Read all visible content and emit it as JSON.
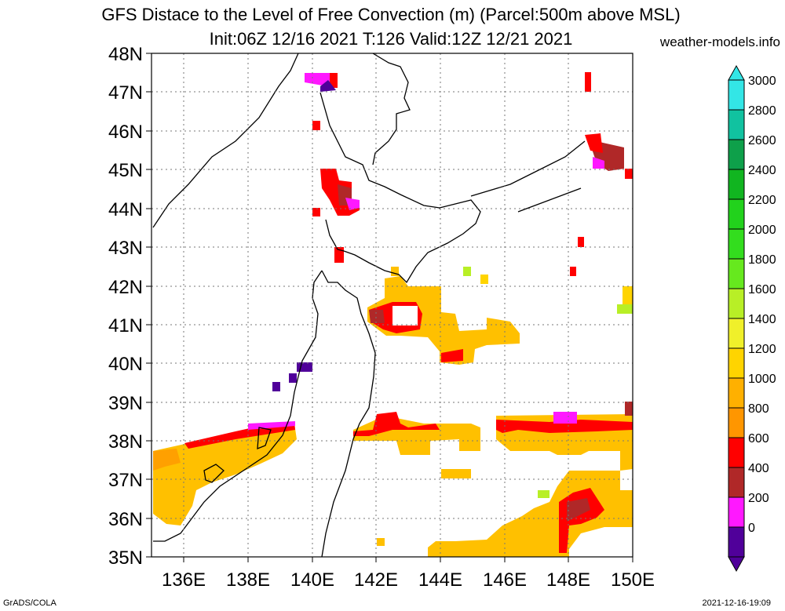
{
  "header": {
    "title_line1": "GFS Distace to the Level of Free Convection (m) (Parcel:500m above MSL)",
    "title_line2": "Init:06Z 12/16 2021 T:126 Valid:12Z 12/21 2021",
    "site": "weather-models.info"
  },
  "map": {
    "lat_labels": [
      "48N",
      "47N",
      "46N",
      "45N",
      "44N",
      "43N",
      "42N",
      "41N",
      "40N",
      "39N",
      "38N",
      "37N",
      "36N",
      "35N"
    ],
    "lon_labels": [
      "136E",
      "138E",
      "140E",
      "142E",
      "144E",
      "146E",
      "148E",
      "150E"
    ],
    "lat_range": [
      35,
      48
    ],
    "lon_range": [
      135,
      150
    ],
    "grid": "dotted"
  },
  "colorbar": {
    "labels": [
      "3000",
      "2800",
      "2600",
      "2400",
      "2200",
      "2000",
      "1800",
      "1600",
      "1400",
      "1200",
      "1000",
      "800",
      "600",
      "400",
      "200",
      "0"
    ],
    "colors": [
      "#33e6e6",
      "#11c2a0",
      "#0ea04a",
      "#11b520",
      "#22d21c",
      "#33dd1e",
      "#66e91e",
      "#b8ef26",
      "#f0f02a",
      "#ffd400",
      "#ffb000",
      "#ff9600",
      "#ff0000",
      "#b02828",
      "#ff18ff",
      "#50009a"
    ]
  },
  "footer": {
    "left": "GrADS/COLA",
    "right": "2021-12-16-19:09"
  }
}
